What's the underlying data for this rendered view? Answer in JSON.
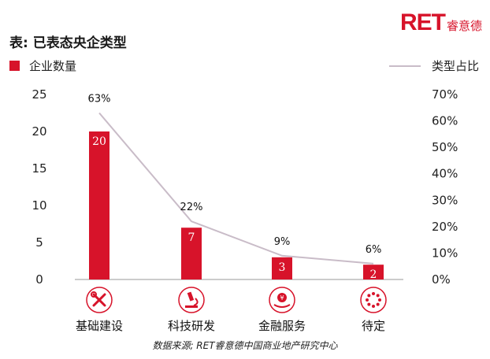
{
  "logo": {
    "mark": "RET",
    "name": "睿意德"
  },
  "header": {
    "title": "表: 已表态央企类型"
  },
  "legend": {
    "bars": "企业数量",
    "line": "类型占比"
  },
  "colors": {
    "bar": "#d7132a",
    "line": "#c9bcc8",
    "axis": "#999999"
  },
  "chart_data": {
    "type": "bar",
    "title": "表: 已表态央企类型",
    "categories": [
      "基础建设",
      "科技研发",
      "金融服务",
      "待定"
    ],
    "category_icons": [
      "tools-icon",
      "microscope-icon",
      "money-hand-icon",
      "dots-circle-icon"
    ],
    "series": [
      {
        "name": "企业数量",
        "type": "bar",
        "axis": "left",
        "values": [
          20,
          7,
          3,
          2
        ],
        "labels": [
          "20",
          "7",
          "3",
          "2"
        ]
      },
      {
        "name": "类型占比",
        "type": "line",
        "axis": "right",
        "values": [
          63,
          22,
          9,
          6
        ],
        "labels": [
          "63%",
          "22%",
          "9%",
          "6%"
        ]
      }
    ],
    "y_left": {
      "min": 0,
      "max": 25,
      "ticks": [
        "0",
        "5",
        "10",
        "15",
        "20",
        "25"
      ],
      "tick_values": [
        0,
        5,
        10,
        15,
        20,
        25
      ]
    },
    "y_right": {
      "min": 0,
      "max": 70,
      "ticks": [
        "0%",
        "10%",
        "20%",
        "30%",
        "40%",
        "50%",
        "60%",
        "70%"
      ],
      "tick_values": [
        0,
        10,
        20,
        30,
        40,
        50,
        60,
        70
      ]
    },
    "grid": false,
    "legend_position": "top"
  },
  "source": "数据来源; RET睿意德中国商业地产研究中心"
}
